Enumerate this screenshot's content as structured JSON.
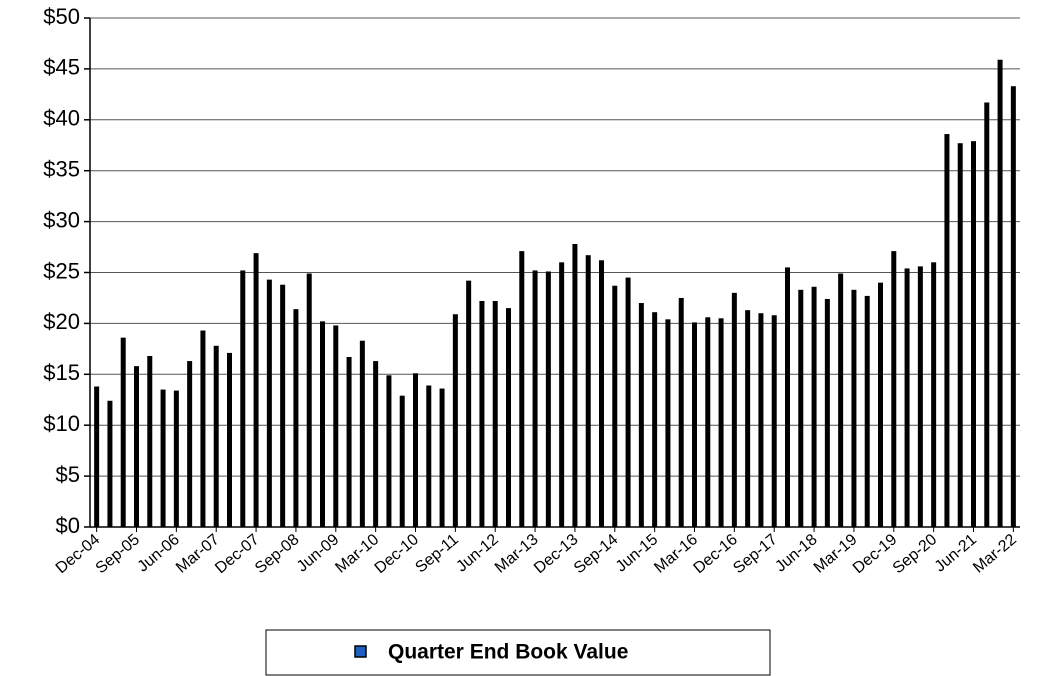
{
  "chart_data": {
    "type": "bar",
    "categories": [
      "Dec-04",
      null,
      null,
      "Sep-05",
      null,
      null,
      "Jun-06",
      null,
      null,
      "Mar-07",
      null,
      null,
      "Dec-07",
      null,
      null,
      "Sep-08",
      null,
      null,
      "Jun-09",
      null,
      null,
      "Mar-10",
      null,
      null,
      "Dec-10",
      null,
      null,
      "Sep-11",
      null,
      null,
      "Jun-12",
      null,
      null,
      "Mar-13",
      null,
      null,
      "Dec-13",
      null,
      null,
      "Sep-14",
      null,
      null,
      "Jun-15",
      null,
      null,
      "Mar-16",
      null,
      null,
      "Dec-16",
      null,
      null,
      "Sep-17",
      null,
      null,
      "Jun-18",
      null,
      null,
      "Mar-19",
      null,
      null,
      "Dec-19",
      null,
      null,
      "Sep-20",
      null,
      null,
      "Jun-21",
      null,
      null,
      "Mar-22"
    ],
    "series": [
      {
        "name": "Quarter End Book Value",
        "color": "#000000",
        "values": [
          13.8,
          12.4,
          18.6,
          15.8,
          16.8,
          13.5,
          13.4,
          16.3,
          19.3,
          17.8,
          17.1,
          25.2,
          26.9,
          24.3,
          23.8,
          21.4,
          24.9,
          20.2,
          19.8,
          16.7,
          18.3,
          16.3,
          14.9,
          12.9,
          15.1,
          13.9,
          13.6,
          20.9,
          24.2,
          22.2,
          22.2,
          21.5,
          27.1,
          25.2,
          25.1,
          26.0,
          27.8,
          26.7,
          26.2,
          23.7,
          24.5,
          22.0,
          21.1,
          20.4,
          22.5,
          20.1,
          20.6,
          20.5,
          23.0,
          21.3,
          21.0,
          20.8,
          25.5,
          23.3,
          23.6,
          22.4,
          24.9,
          23.3,
          22.7,
          24.0,
          27.1,
          25.4,
          25.6,
          26.0,
          38.6,
          37.7,
          37.9,
          41.7,
          45.9,
          43.3
        ]
      }
    ],
    "ylim": [
      0,
      50
    ],
    "yticks": [
      {
        "value": 0,
        "label": "$0"
      },
      {
        "value": 5,
        "label": "$5"
      },
      {
        "value": 10,
        "label": "$10"
      },
      {
        "value": 15,
        "label": "$15"
      },
      {
        "value": 20,
        "label": "$20"
      },
      {
        "value": 25,
        "label": "$25"
      },
      {
        "value": 30,
        "label": "$30"
      },
      {
        "value": 35,
        "label": "$35"
      },
      {
        "value": 40,
        "label": "$40"
      },
      {
        "value": 45,
        "label": "$45"
      },
      {
        "value": 50,
        "label": "$50"
      }
    ],
    "grid": true
  }
}
